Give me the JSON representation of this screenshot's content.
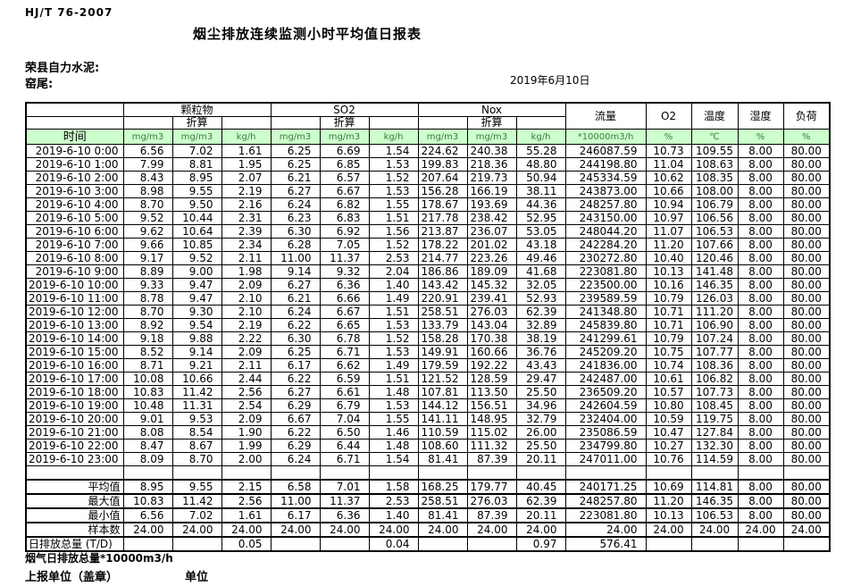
{
  "page": {
    "standard_code": "HJ/T  76-2007",
    "title": "烟尘排放连续监测小时平均值日报表",
    "company": "荣县自力水泥:",
    "location": "窑尾:",
    "date": "2019年6月10日"
  },
  "table": {
    "header": {
      "time": "时间",
      "group_particulate": "颗粒物",
      "group_so2": "SO2",
      "group_nox": "Nox",
      "converted": "折算",
      "flow": "流量",
      "o2": "O2",
      "temperature": "温度",
      "humidity": "湿度",
      "load": "负荷"
    },
    "units": [
      "mg/m3",
      "mg/m3",
      "kg/h",
      "mg/m3",
      "mg/m3",
      "kg/h",
      "mg/m3",
      "mg/m3",
      "kg/h",
      "*10000m3/h",
      "%",
      "℃",
      "%",
      "%"
    ],
    "rows": [
      [
        "2019-6-10 0:00",
        "6.56",
        "7.02",
        "1.61",
        "6.25",
        "6.69",
        "1.54",
        "224.62",
        "240.38",
        "55.28",
        "246087.59",
        "10.73",
        "109.55",
        "8.00",
        "80.00"
      ],
      [
        "2019-6-10 1:00",
        "7.99",
        "8.81",
        "1.95",
        "6.25",
        "6.85",
        "1.53",
        "199.83",
        "218.36",
        "48.80",
        "244198.80",
        "11.04",
        "108.63",
        "8.00",
        "80.00"
      ],
      [
        "2019-6-10 2:00",
        "8.43",
        "8.95",
        "2.07",
        "6.21",
        "6.57",
        "1.52",
        "207.64",
        "219.73",
        "50.94",
        "245334.59",
        "10.62",
        "108.35",
        "8.00",
        "80.00"
      ],
      [
        "2019-6-10 3:00",
        "8.98",
        "9.55",
        "2.19",
        "6.27",
        "6.67",
        "1.53",
        "156.28",
        "166.19",
        "38.11",
        "243873.00",
        "10.66",
        "108.00",
        "8.00",
        "80.00"
      ],
      [
        "2019-6-10 4:00",
        "8.70",
        "9.50",
        "2.16",
        "6.24",
        "6.82",
        "1.55",
        "178.67",
        "193.69",
        "44.36",
        "248257.80",
        "10.94",
        "106.79",
        "8.00",
        "80.00"
      ],
      [
        "2019-6-10 5:00",
        "9.52",
        "10.44",
        "2.31",
        "6.23",
        "6.83",
        "1.51",
        "217.78",
        "238.42",
        "52.95",
        "243150.00",
        "10.97",
        "106.56",
        "8.00",
        "80.00"
      ],
      [
        "2019-6-10 6:00",
        "9.62",
        "10.64",
        "2.39",
        "6.30",
        "6.92",
        "1.56",
        "213.87",
        "236.07",
        "53.05",
        "248044.20",
        "11.07",
        "106.53",
        "8.00",
        "80.00"
      ],
      [
        "2019-6-10 7:00",
        "9.66",
        "10.85",
        "2.34",
        "6.28",
        "7.05",
        "1.52",
        "178.22",
        "201.02",
        "43.18",
        "242284.20",
        "11.20",
        "107.66",
        "8.00",
        "80.00"
      ],
      [
        "2019-6-10 8:00",
        "9.17",
        "9.52",
        "2.11",
        "11.00",
        "11.37",
        "2.53",
        "214.77",
        "223.26",
        "49.46",
        "230272.80",
        "10.40",
        "120.46",
        "8.00",
        "80.00"
      ],
      [
        "2019-6-10 9:00",
        "8.89",
        "9.00",
        "1.98",
        "9.14",
        "9.32",
        "2.04",
        "186.86",
        "189.09",
        "41.68",
        "223081.80",
        "10.13",
        "141.48",
        "8.00",
        "80.00"
      ],
      [
        "2019-6-10 10:00",
        "9.33",
        "9.47",
        "2.09",
        "6.27",
        "6.36",
        "1.40",
        "143.42",
        "145.32",
        "32.05",
        "223500.00",
        "10.16",
        "146.35",
        "8.00",
        "80.00"
      ],
      [
        "2019-6-10 11:00",
        "8.78",
        "9.47",
        "2.10",
        "6.21",
        "6.66",
        "1.49",
        "220.91",
        "239.41",
        "52.93",
        "239589.59",
        "10.79",
        "126.03",
        "8.00",
        "80.00"
      ],
      [
        "2019-6-10 12:00",
        "8.70",
        "9.30",
        "2.10",
        "6.24",
        "6.67",
        "1.51",
        "258.51",
        "276.03",
        "62.39",
        "241348.80",
        "10.71",
        "111.20",
        "8.00",
        "80.00"
      ],
      [
        "2019-6-10 13:00",
        "8.92",
        "9.54",
        "2.19",
        "6.22",
        "6.65",
        "1.53",
        "133.79",
        "143.04",
        "32.89",
        "245839.80",
        "10.71",
        "106.90",
        "8.00",
        "80.00"
      ],
      [
        "2019-6-10 14:00",
        "9.18",
        "9.88",
        "2.22",
        "6.30",
        "6.78",
        "1.52",
        "158.28",
        "170.38",
        "38.19",
        "241299.61",
        "10.79",
        "107.24",
        "8.00",
        "80.00"
      ],
      [
        "2019-6-10 15:00",
        "8.52",
        "9.14",
        "2.09",
        "6.25",
        "6.71",
        "1.53",
        "149.91",
        "160.66",
        "36.76",
        "245209.20",
        "10.75",
        "107.77",
        "8.00",
        "80.00"
      ],
      [
        "2019-6-10 16:00",
        "8.71",
        "9.21",
        "2.11",
        "6.17",
        "6.62",
        "1.49",
        "179.59",
        "192.22",
        "43.43",
        "241836.00",
        "10.74",
        "108.36",
        "8.00",
        "80.00"
      ],
      [
        "2019-6-10 17:00",
        "10.08",
        "10.66",
        "2.44",
        "6.22",
        "6.59",
        "1.51",
        "121.52",
        "128.59",
        "29.47",
        "242487.00",
        "10.61",
        "106.82",
        "8.00",
        "80.00"
      ],
      [
        "2019-6-10 18:00",
        "10.83",
        "11.42",
        "2.56",
        "6.27",
        "6.61",
        "1.48",
        "107.81",
        "113.50",
        "25.50",
        "236509.20",
        "10.57",
        "107.73",
        "8.00",
        "80.00"
      ],
      [
        "2019-6-10 19:00",
        "10.48",
        "11.31",
        "2.54",
        "6.29",
        "6.79",
        "1.53",
        "144.12",
        "156.51",
        "34.96",
        "242604.59",
        "10.80",
        "108.45",
        "8.00",
        "80.00"
      ],
      [
        "2019-6-10 20:00",
        "9.01",
        "9.53",
        "2.09",
        "6.67",
        "7.04",
        "1.55",
        "141.11",
        "148.95",
        "32.79",
        "232404.00",
        "10.59",
        "119.75",
        "8.00",
        "80.00"
      ],
      [
        "2019-6-10 21:00",
        "8.08",
        "8.54",
        "1.90",
        "6.22",
        "6.50",
        "1.46",
        "110.59",
        "115.02",
        "26.00",
        "235086.59",
        "10.47",
        "127.84",
        "8.00",
        "80.00"
      ],
      [
        "2019-6-10 22:00",
        "8.47",
        "8.67",
        "1.99",
        "6.29",
        "6.44",
        "1.48",
        "108.60",
        "111.32",
        "25.50",
        "234799.80",
        "10.27",
        "132.30",
        "8.00",
        "80.00"
      ],
      [
        "2019-6-10 23:00",
        "8.09",
        "8.70",
        "2.00",
        "6.24",
        "6.71",
        "1.54",
        "81.41",
        "87.39",
        "20.11",
        "247011.00",
        "10.76",
        "114.59",
        "8.00",
        "80.00"
      ]
    ],
    "summary": [
      {
        "label": "平均值",
        "label_align": "right",
        "values": [
          "8.95",
          "9.55",
          "2.15",
          "6.58",
          "7.01",
          "1.58",
          "168.25",
          "179.77",
          "40.45",
          "240171.25",
          "10.69",
          "114.81",
          "8.00",
          "80.00"
        ]
      },
      {
        "label": "最大值",
        "label_align": "right",
        "values": [
          "10.83",
          "11.42",
          "2.56",
          "11.00",
          "11.37",
          "2.53",
          "258.51",
          "276.03",
          "62.39",
          "248257.80",
          "11.20",
          "146.35",
          "8.00",
          "80.00"
        ]
      },
      {
        "label": "最小值",
        "label_align": "right",
        "values": [
          "6.56",
          "7.02",
          "1.61",
          "6.17",
          "6.36",
          "1.40",
          "81.41",
          "87.39",
          "20.11",
          "223081.80",
          "10.13",
          "106.53",
          "8.00",
          "80.00"
        ]
      },
      {
        "label": "样本数",
        "label_align": "right",
        "values": [
          "24.00",
          "24.00",
          "24.00",
          "24.00",
          "24.00",
          "24.00",
          "24.00",
          "24.00",
          "24.00",
          "24.00",
          "24.00",
          "24.00",
          "24.00",
          "24.00"
        ]
      },
      {
        "label": "日排放总量 (T/D)",
        "label_align": "left",
        "values": [
          "",
          "",
          "0.05",
          "",
          "",
          "0.04",
          "",
          "",
          "0.97",
          "576.41",
          "",
          "",
          "",
          ""
        ]
      }
    ]
  },
  "footer": {
    "flue_total": "烟气日排放总量*10000m3/h",
    "report_unit": "上报单位（盖章）",
    "unit": "单位"
  },
  "colors": {
    "units_row_background": "#ccffcc",
    "units_text": "#3f7a3f",
    "border": "#000000"
  }
}
